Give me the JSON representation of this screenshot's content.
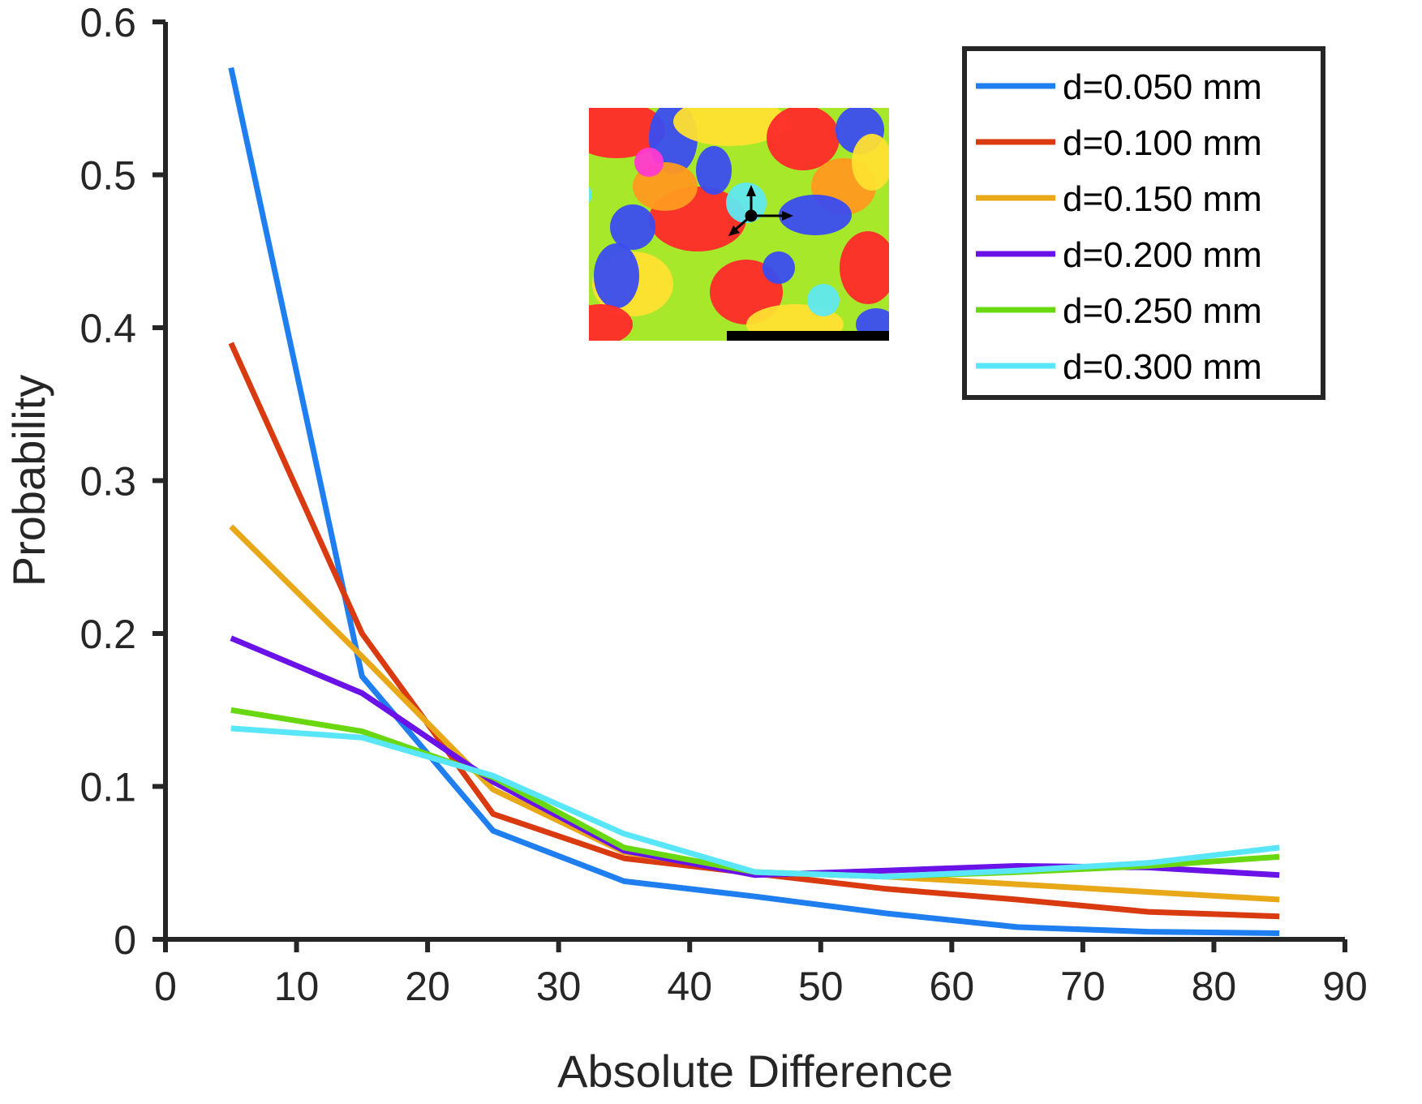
{
  "chart_data": {
    "type": "line",
    "xlabel": "Absolute Difference",
    "ylabel": "Probability",
    "xlim": [
      0,
      90
    ],
    "ylim": [
      0,
      0.6
    ],
    "xticks": [
      "0",
      "10",
      "20",
      "30",
      "40",
      "50",
      "60",
      "70",
      "80",
      "90"
    ],
    "yticks": [
      "0",
      "0.1",
      "0.2",
      "0.3",
      "0.4",
      "0.5",
      "0.6"
    ],
    "x": [
      5,
      15,
      25,
      35,
      45,
      55,
      65,
      75,
      85
    ],
    "grid": false,
    "legend_position": "top-right",
    "inset_image": "orientation map with axis-arrows-icon and scale bar",
    "series": [
      {
        "name": "d=0.050 mm",
        "color": "#1f7ff0",
        "values": [
          0.57,
          0.172,
          0.071,
          0.038,
          0.028,
          0.017,
          0.008,
          0.005,
          0.004
        ]
      },
      {
        "name": "d=0.100 mm",
        "color": "#d93a10",
        "values": [
          0.39,
          0.2,
          0.082,
          0.053,
          0.043,
          0.033,
          0.026,
          0.018,
          0.015
        ]
      },
      {
        "name": "d=0.150 mm",
        "color": "#e8a818",
        "values": [
          0.27,
          0.185,
          0.098,
          0.057,
          0.044,
          0.041,
          0.036,
          0.031,
          0.026
        ]
      },
      {
        "name": "d=0.200 mm",
        "color": "#6a12e8",
        "values": [
          0.197,
          0.161,
          0.103,
          0.058,
          0.042,
          0.045,
          0.048,
          0.047,
          0.042
        ]
      },
      {
        "name": "d=0.250 mm",
        "color": "#6ad810",
        "values": [
          0.15,
          0.136,
          0.106,
          0.06,
          0.044,
          0.041,
          0.044,
          0.048,
          0.054
        ]
      },
      {
        "name": "d=0.300 mm",
        "color": "#58e6f8",
        "values": [
          0.138,
          0.132,
          0.107,
          0.069,
          0.044,
          0.041,
          0.045,
          0.05,
          0.06
        ]
      }
    ]
  }
}
